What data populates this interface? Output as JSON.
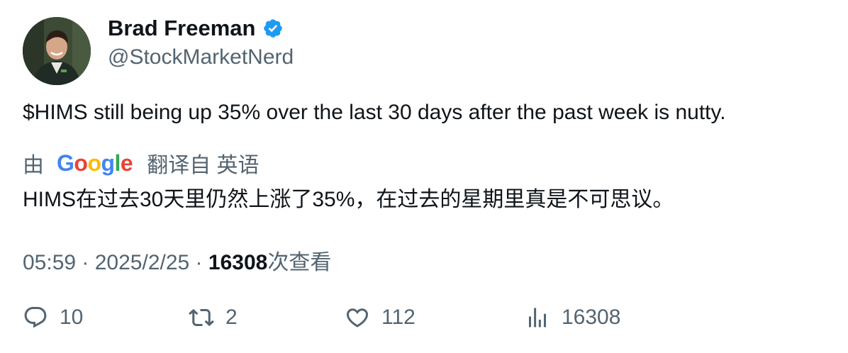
{
  "author": {
    "name": "Brad Freeman",
    "handle": "@StockMarketNerd"
  },
  "tweet": {
    "text": "$HIMS still being up 35% over the last 30 days after the past week is nutty."
  },
  "translation": {
    "by_label": "由",
    "google_logo": "Google",
    "from_label": "翻译自 英语",
    "text": "HIMS在过去30天里仍然上涨了35%，在过去的星期里真是不可思议。"
  },
  "meta": {
    "time": "05:59",
    "sep1": " · ",
    "date": "2025/2/25",
    "sep2": " · ",
    "views_count": "16308",
    "views_label": "次查看"
  },
  "actions": {
    "replies": "10",
    "retweets": "2",
    "likes": "112",
    "views": "16308"
  },
  "colors": {
    "verified": "#1d9bf0",
    "secondary_text": "#536471",
    "primary_text": "#0f1419"
  }
}
